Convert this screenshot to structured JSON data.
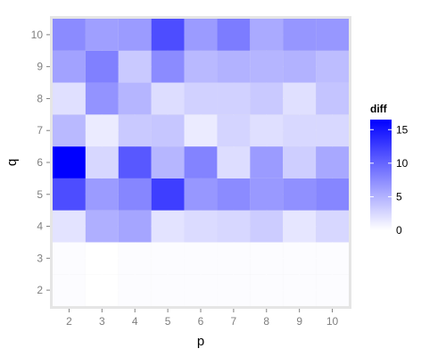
{
  "chart_data": {
    "type": "heatmap",
    "xlabel": "p",
    "ylabel": "q",
    "x": [
      2,
      3,
      4,
      5,
      6,
      7,
      8,
      9,
      10
    ],
    "y": [
      2,
      3,
      4,
      5,
      6,
      7,
      8,
      9,
      10
    ],
    "z": [
      [
        0.2,
        0.0,
        0.2,
        0.2,
        0.2,
        0.2,
        0.2,
        0.2,
        0.2
      ],
      [
        0.2,
        0.0,
        0.2,
        0.2,
        0.2,
        0.2,
        0.2,
        0.2,
        0.2
      ],
      [
        1.8,
        5.2,
        5.8,
        1.8,
        2.3,
        2.6,
        3.3,
        1.6,
        2.6
      ],
      [
        11.5,
        6.5,
        7.8,
        12.5,
        6.7,
        7.5,
        6.6,
        7.2,
        7.8
      ],
      [
        16.5,
        2.6,
        10.8,
        4.7,
        8.0,
        2.2,
        6.5,
        3.2,
        5.6
      ],
      [
        4.5,
        1.3,
        3.5,
        3.7,
        1.3,
        2.8,
        2.1,
        2.5,
        2.5
      ],
      [
        2.0,
        7.0,
        4.8,
        2.2,
        3.0,
        3.0,
        3.5,
        2.0,
        3.8
      ],
      [
        6.0,
        8.2,
        3.5,
        7.5,
        4.5,
        5.0,
        4.8,
        5.0,
        4.3
      ],
      [
        7.5,
        6.2,
        6.5,
        11.5,
        6.5,
        8.5,
        5.5,
        6.8,
        6.7
      ]
    ],
    "xlim": [
      1.5,
      10.5
    ],
    "ylim": [
      1.5,
      10.5
    ],
    "grid": true,
    "legend": {
      "title": "diff",
      "position": "right",
      "ticks": [
        0,
        5,
        10,
        15
      ],
      "range": [
        0,
        16.5
      ],
      "low_color": "#ffffff",
      "high_color": "#0000ff"
    },
    "panel_background": "#e5e5e5"
  }
}
